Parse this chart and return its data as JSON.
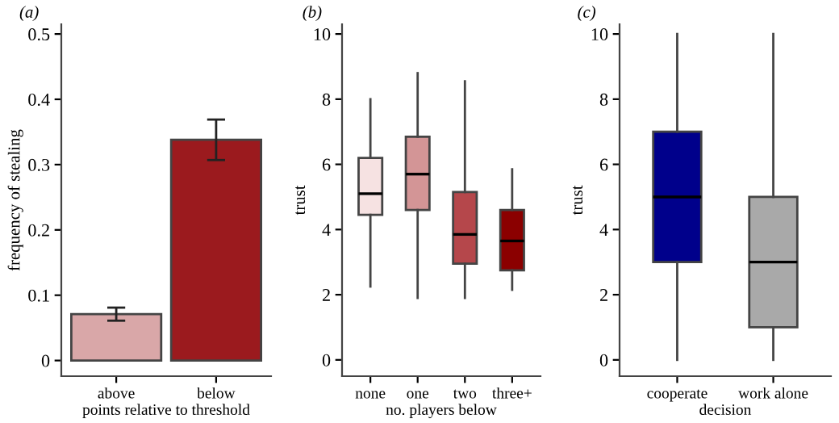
{
  "chart_data": [
    {
      "type": "bar",
      "title": "(a)",
      "xlabel": "points relative to threshold",
      "ylabel": "frequency of stealing",
      "categories": [
        "above",
        "below"
      ],
      "values": [
        0.071,
        0.338
      ],
      "errors": [
        [
          0.061,
          0.081
        ],
        [
          0.307,
          0.369
        ]
      ],
      "colors": [
        "#d9a7a8",
        "#9b1a1e"
      ],
      "ylim": [
        -0.024,
        0.515
      ],
      "yticks": [
        0,
        0.1,
        0.2,
        0.3,
        0.4,
        0.5
      ],
      "grid": false,
      "legend": false
    },
    {
      "type": "box",
      "title": "(b)",
      "xlabel": "no. players below",
      "ylabel": "trust",
      "categories": [
        "none",
        "one",
        "two",
        "three+"
      ],
      "colors": [
        "#f6e2e2",
        "#d39596",
        "#b5474b",
        "#8b0000"
      ],
      "boxes": [
        {
          "low": 2.25,
          "q1": 4.45,
          "median": 5.1,
          "q3": 6.2,
          "high": 8.0
        },
        {
          "low": 1.9,
          "q1": 4.6,
          "median": 5.7,
          "q3": 6.85,
          "high": 8.8
        },
        {
          "low": 1.9,
          "q1": 2.95,
          "median": 3.85,
          "q3": 5.15,
          "high": 8.55
        },
        {
          "low": 2.15,
          "q1": 2.75,
          "median": 3.65,
          "q3": 4.6,
          "high": 5.85
        }
      ],
      "ylim": [
        -0.5,
        10.3
      ],
      "yticks": [
        0,
        2,
        4,
        6,
        8,
        10
      ],
      "grid": false,
      "legend": false
    },
    {
      "type": "box",
      "title": "(c)",
      "xlabel": "decision",
      "ylabel": "trust",
      "categories": [
        "cooperate",
        "work alone"
      ],
      "colors": [
        "#00008b",
        "#a9a9a9"
      ],
      "boxes": [
        {
          "low": 0,
          "q1": 3,
          "median": 5,
          "q3": 7,
          "high": 10
        },
        {
          "low": 0,
          "q1": 1,
          "median": 3,
          "q3": 5,
          "high": 10
        }
      ],
      "ylim": [
        -0.5,
        10.3
      ],
      "yticks": [
        0,
        2,
        4,
        6,
        8,
        10
      ],
      "grid": false,
      "legend": false
    }
  ]
}
